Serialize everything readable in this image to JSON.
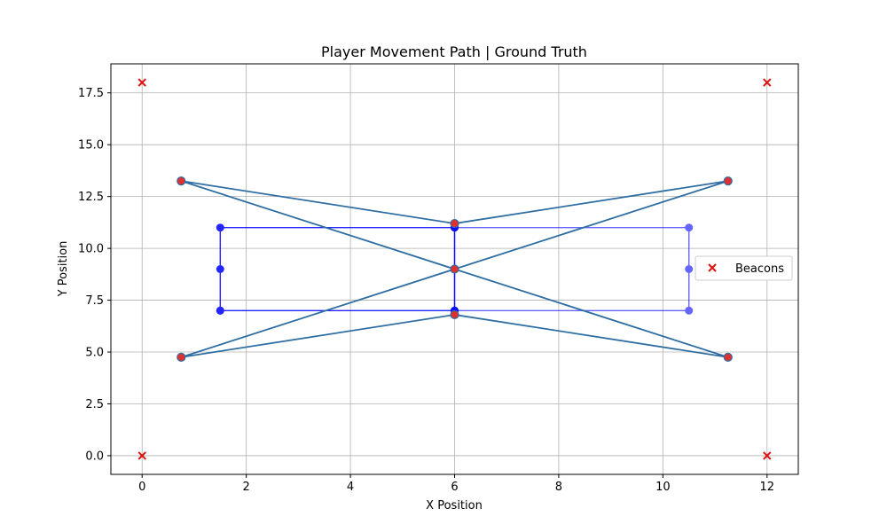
{
  "chart_data": {
    "type": "scatter",
    "title": "Player Movement Path | Ground Truth",
    "xlabel": "X Position",
    "ylabel": "Y Position",
    "xlim": [
      -0.6,
      12.6
    ],
    "ylim": [
      -0.9,
      18.9
    ],
    "x_ticks": [
      0,
      2,
      4,
      6,
      8,
      10,
      12
    ],
    "x_tick_labels": [
      "0",
      "2",
      "4",
      "6",
      "8",
      "10",
      "12"
    ],
    "y_ticks": [
      0.0,
      2.5,
      5.0,
      7.5,
      10.0,
      12.5,
      15.0,
      17.5
    ],
    "y_tick_labels": [
      "0.0",
      "2.5",
      "5.0",
      "7.5",
      "10.0",
      "12.5",
      "15.0",
      "17.5"
    ],
    "grid": true,
    "legend_position": "center-right",
    "series": [
      {
        "kind": "path",
        "points": [
          [
            1.5,
            7.0
          ],
          [
            1.5,
            9.0
          ],
          [
            1.5,
            11.0
          ],
          [
            6.0,
            11.0
          ],
          [
            6.0,
            9.0
          ],
          [
            6.0,
            7.0
          ],
          [
            1.5,
            7.0
          ]
        ],
        "color": "#0000ff",
        "opacity": 0.85
      },
      {
        "kind": "path",
        "points": [
          [
            6.0,
            7.0
          ],
          [
            6.0,
            9.0
          ],
          [
            6.0,
            11.0
          ],
          [
            10.5,
            11.0
          ],
          [
            10.5,
            9.0
          ],
          [
            10.5,
            7.0
          ],
          [
            6.0,
            7.0
          ]
        ],
        "color": "#0000ff",
        "opacity": 0.6
      },
      {
        "kind": "path",
        "points": [
          [
            0.75,
            13.25
          ],
          [
            6.0,
            11.2
          ],
          [
            11.25,
            13.25
          ],
          [
            6.0,
            9.0
          ],
          [
            0.75,
            4.75
          ],
          [
            6.0,
            6.8
          ],
          [
            11.25,
            4.75
          ],
          [
            6.0,
            9.0
          ],
          [
            0.75,
            13.25
          ]
        ],
        "color": "#2f6ea3",
        "markers": [
          [
            0.75,
            13.25
          ],
          [
            6.0,
            11.2
          ],
          [
            11.25,
            13.25
          ],
          [
            6.0,
            9.0
          ],
          [
            0.75,
            4.75
          ],
          [
            6.0,
            6.8
          ],
          [
            11.25,
            4.75
          ]
        ],
        "marker_color": "#e03030"
      },
      {
        "name": "Beacons",
        "kind": "scatter",
        "marker": "x",
        "color": "#dd1111",
        "points": [
          [
            0,
            0
          ],
          [
            0,
            18
          ],
          [
            12,
            0
          ],
          [
            12,
            18
          ]
        ]
      }
    ]
  }
}
